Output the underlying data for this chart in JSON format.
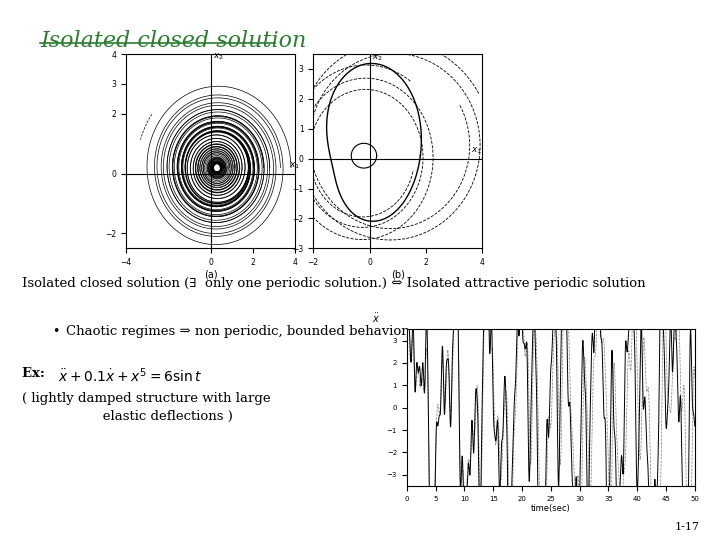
{
  "title": "Isolated closed solution",
  "title_color": "#2E7D32",
  "background_color": "#ffffff",
  "line1": "Isolated closed solution (∃  only one periodic solution.) ⇔ Isolated attractive periodic solution",
  "bullet1": "Chaotic regimes ⇒ non periodic, bounded behavior",
  "ex_label": "Ex:  ",
  "ex_eq": "$\\ddot{x}+ 0.1\\dot{x}+ x^5 = 6\\sin t$",
  "caption_line1": "( lightly damped structure with large",
  "caption_line2": "                   elastic deflections )",
  "slide_number": "1-17",
  "fig_a_label": "(a)",
  "fig_b_label": "(b)"
}
